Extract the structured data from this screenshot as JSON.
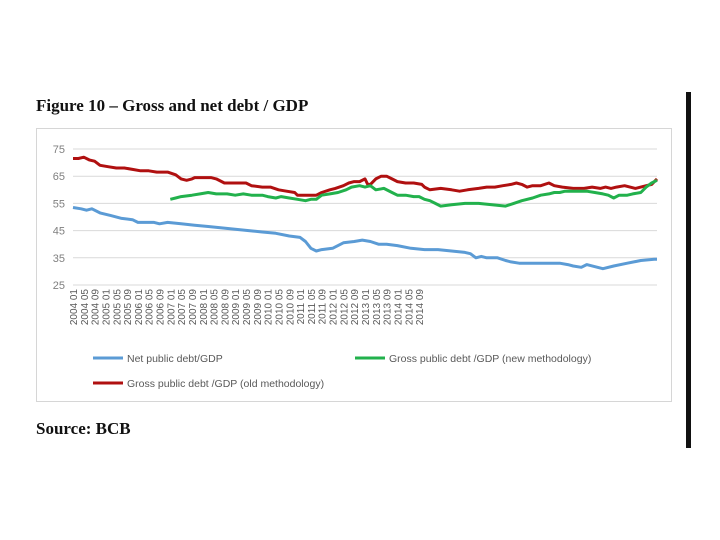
{
  "figure_title": "Figure 10 – Gross and net debt / GDP",
  "source": "Source: BCB",
  "colors": {
    "net": "#5b9bd5",
    "gross_new": "#22b14c",
    "gross_old": "#b01010",
    "grid": "#d9d9d9"
  },
  "chart_data": {
    "type": "line",
    "title": "Figure 10 – Gross and net debt / GDP",
    "xlabel": "",
    "ylabel": "",
    "ylim": [
      25,
      75
    ],
    "yticks": [
      "75",
      "65",
      "55",
      "45",
      "35",
      "25"
    ],
    "xticks": [
      "2004 01",
      "2004 05",
      "2004 09",
      "2005 01",
      "2005 05",
      "2005 09",
      "2006 01",
      "2006 05",
      "2006 09",
      "2007 01",
      "2007 05",
      "2007 09",
      "2008 01",
      "2008 05",
      "2008 09",
      "2009 01",
      "2009 05",
      "2009 09",
      "2010 01",
      "2010 05",
      "2010 09",
      "2011 01",
      "2011 05",
      "2011 09",
      "2012 01",
      "2012 05",
      "2012 09",
      "2013 01",
      "2013 05",
      "2013 09",
      "2014 01",
      "2014 05",
      "2014 09"
    ],
    "x_start": "2004 01",
    "x_end": "2014 12",
    "legend_position": "bottom",
    "series": [
      {
        "name": "Net public debt/GDP",
        "color": "#5b9bd5",
        "points": [
          [
            0,
            53.5
          ],
          [
            3,
            53
          ],
          [
            5,
            52.5
          ],
          [
            7,
            53
          ],
          [
            10,
            51.5
          ],
          [
            14,
            50.5
          ],
          [
            18,
            49.5
          ],
          [
            22,
            49
          ],
          [
            24,
            48
          ],
          [
            30,
            48
          ],
          [
            32,
            47.5
          ],
          [
            35,
            48
          ],
          [
            40,
            47.5
          ],
          [
            45,
            47
          ],
          [
            50,
            46.5
          ],
          [
            55,
            46
          ],
          [
            60,
            45.5
          ],
          [
            65,
            45
          ],
          [
            70,
            44.5
          ],
          [
            75,
            44
          ],
          [
            80,
            43
          ],
          [
            84,
            42.5
          ],
          [
            86,
            41
          ],
          [
            88,
            38.5
          ],
          [
            90,
            37.5
          ],
          [
            92,
            38
          ],
          [
            96,
            38.5
          ],
          [
            100,
            40.5
          ],
          [
            104,
            41
          ],
          [
            107,
            41.5
          ],
          [
            110,
            41
          ],
          [
            113,
            40
          ],
          [
            116,
            40
          ],
          [
            120,
            39.5
          ],
          [
            125,
            38.5
          ],
          [
            130,
            38
          ],
          [
            135,
            38
          ],
          [
            140,
            37.5
          ],
          [
            145,
            37
          ],
          [
            147,
            36.5
          ],
          [
            149,
            35
          ],
          [
            151,
            35.5
          ],
          [
            153,
            35
          ],
          [
            157,
            35
          ],
          [
            160,
            34
          ],
          [
            162,
            33.5
          ],
          [
            165,
            33
          ],
          [
            170,
            33
          ],
          [
            175,
            33
          ],
          [
            180,
            33
          ],
          [
            183,
            32.5
          ],
          [
            185,
            32
          ],
          [
            188,
            31.5
          ],
          [
            190,
            32.5
          ],
          [
            194,
            31.5
          ],
          [
            196,
            31
          ],
          [
            200,
            32
          ],
          [
            205,
            33
          ],
          [
            210,
            34
          ],
          [
            215,
            34.5
          ],
          [
            216,
            34.5
          ]
        ]
      },
      {
        "name": "Gross public debt /GDP (new methodology)",
        "color": "#22b14c",
        "points": [
          [
            36,
            56.5
          ],
          [
            38,
            57
          ],
          [
            40,
            57.5
          ],
          [
            44,
            58
          ],
          [
            47,
            58.5
          ],
          [
            50,
            59
          ],
          [
            53,
            58.5
          ],
          [
            57,
            58.5
          ],
          [
            60,
            58
          ],
          [
            63,
            58.5
          ],
          [
            66,
            58
          ],
          [
            70,
            58
          ],
          [
            72,
            57.5
          ],
          [
            75,
            57
          ],
          [
            77,
            57.5
          ],
          [
            80,
            57
          ],
          [
            83,
            56.5
          ],
          [
            86,
            56
          ],
          [
            88,
            56.5
          ],
          [
            90,
            56.5
          ],
          [
            92,
            58
          ],
          [
            95,
            58.5
          ],
          [
            98,
            59
          ],
          [
            101,
            60
          ],
          [
            103,
            61
          ],
          [
            106,
            61.5
          ],
          [
            108,
            61
          ],
          [
            110,
            61.5
          ],
          [
            112,
            60
          ],
          [
            115,
            60.5
          ],
          [
            118,
            59
          ],
          [
            120,
            58
          ],
          [
            123,
            58
          ],
          [
            126,
            57.5
          ],
          [
            128,
            57.5
          ],
          [
            130,
            56.5
          ],
          [
            132,
            56
          ],
          [
            134,
            55
          ],
          [
            136,
            54
          ],
          [
            140,
            54.5
          ],
          [
            145,
            55
          ],
          [
            150,
            55
          ],
          [
            155,
            54.5
          ],
          [
            160,
            54
          ],
          [
            163,
            55
          ],
          [
            166,
            56
          ],
          [
            170,
            57
          ],
          [
            173,
            58
          ],
          [
            176,
            58.5
          ],
          [
            178,
            59
          ],
          [
            180,
            59
          ],
          [
            182,
            59.5
          ],
          [
            186,
            59.5
          ],
          [
            190,
            59.5
          ],
          [
            193,
            59
          ],
          [
            196,
            58.5
          ],
          [
            198,
            58
          ],
          [
            200,
            57
          ],
          [
            202,
            58
          ],
          [
            205,
            58
          ],
          [
            207,
            58.5
          ],
          [
            210,
            59
          ],
          [
            212,
            61
          ],
          [
            214,
            62.5
          ],
          [
            216,
            63.5
          ]
        ]
      },
      {
        "name": "Gross public debt /GDP (old methodology)",
        "color": "#b01010",
        "points": [
          [
            0,
            71.5
          ],
          [
            2,
            71.5
          ],
          [
            4,
            72
          ],
          [
            6,
            71
          ],
          [
            8,
            70.5
          ],
          [
            10,
            69
          ],
          [
            13,
            68.5
          ],
          [
            16,
            68
          ],
          [
            19,
            68
          ],
          [
            22,
            67.5
          ],
          [
            25,
            67
          ],
          [
            28,
            67
          ],
          [
            31,
            66.5
          ],
          [
            35,
            66.5
          ],
          [
            38,
            65.5
          ],
          [
            40,
            64
          ],
          [
            42,
            63.5
          ],
          [
            44,
            64
          ],
          [
            45,
            64.5
          ],
          [
            47,
            64.5
          ],
          [
            49,
            64.5
          ],
          [
            51,
            64.5
          ],
          [
            53,
            64
          ],
          [
            56,
            62.5
          ],
          [
            60,
            62.5
          ],
          [
            64,
            62.5
          ],
          [
            66,
            61.5
          ],
          [
            70,
            61
          ],
          [
            73,
            61
          ],
          [
            76,
            60
          ],
          [
            79,
            59.5
          ],
          [
            82,
            59
          ],
          [
            83,
            58
          ],
          [
            86,
            58
          ],
          [
            90,
            58
          ],
          [
            92,
            59
          ],
          [
            95,
            60
          ],
          [
            97,
            60.5
          ],
          [
            100,
            61.5
          ],
          [
            102,
            62.5
          ],
          [
            104,
            63
          ],
          [
            106,
            63
          ],
          [
            108,
            64
          ],
          [
            109,
            62
          ],
          [
            110,
            62
          ],
          [
            112,
            64
          ],
          [
            114,
            65
          ],
          [
            116,
            65
          ],
          [
            118,
            64
          ],
          [
            120,
            63
          ],
          [
            123,
            62.5
          ],
          [
            126,
            62.5
          ],
          [
            129,
            62
          ],
          [
            130,
            61
          ],
          [
            132,
            60
          ],
          [
            136,
            60.5
          ],
          [
            140,
            60
          ],
          [
            143,
            59.5
          ],
          [
            146,
            60
          ],
          [
            150,
            60.5
          ],
          [
            153,
            61
          ],
          [
            156,
            61
          ],
          [
            159,
            61.5
          ],
          [
            162,
            62
          ],
          [
            164,
            62.5
          ],
          [
            166,
            62
          ],
          [
            168,
            61
          ],
          [
            170,
            61.5
          ],
          [
            173,
            61.5
          ],
          [
            176,
            62.5
          ],
          [
            178,
            61.5
          ],
          [
            181,
            61
          ],
          [
            185,
            60.5
          ],
          [
            189,
            60.5
          ],
          [
            192,
            61
          ],
          [
            195,
            60.5
          ],
          [
            197,
            61
          ],
          [
            199,
            60.5
          ],
          [
            201,
            61
          ],
          [
            204,
            61.5
          ],
          [
            206,
            61
          ],
          [
            208,
            60.5
          ],
          [
            210,
            61
          ],
          [
            212,
            61.5
          ],
          [
            214,
            62
          ],
          [
            216,
            64
          ]
        ]
      }
    ]
  }
}
